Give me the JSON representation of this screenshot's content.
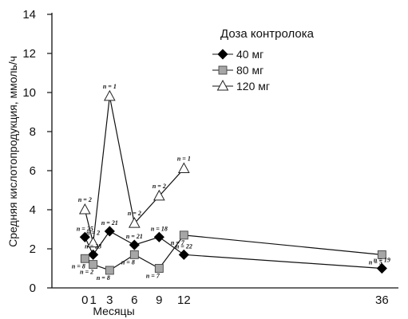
{
  "chart_data": {
    "type": "line",
    "xlabel": "Месяцы",
    "ylabel": "Средняя кислотопродукция, ммоль/ч",
    "ylim": [
      0,
      14
    ],
    "xlim": [
      -4,
      38
    ],
    "x_ticks": [
      0,
      1,
      3,
      6,
      9,
      12,
      36
    ],
    "y_ticks": [
      0,
      2,
      4,
      6,
      8,
      10,
      12,
      14
    ],
    "grid": false,
    "legend": {
      "title": "Доза контролока",
      "placement": "top-right"
    },
    "series": [
      {
        "name": "40 мг",
        "marker": "diamond",
        "fill": "#000000",
        "points": [
          {
            "x": 0,
            "y": 2.6,
            "n": "n = 25"
          },
          {
            "x": 1,
            "y": 1.7,
            "n": "n = 23"
          },
          {
            "x": 3,
            "y": 2.9,
            "n": "n = 21"
          },
          {
            "x": 6,
            "y": 2.2,
            "n": "n = 21"
          },
          {
            "x": 9,
            "y": 2.6,
            "n": "n = 18"
          },
          {
            "x": 12,
            "y": 1.7,
            "n": "n = 22"
          },
          {
            "x": 36,
            "y": 1.0,
            "n": "n = 19"
          }
        ]
      },
      {
        "name": "80 мг",
        "marker": "square",
        "fill": "#a6a6a6",
        "points": [
          {
            "x": 0,
            "y": 1.5,
            "n": "n = 8"
          },
          {
            "x": 1,
            "y": 1.2,
            "n": "n = 2"
          },
          {
            "x": 3,
            "y": 0.9,
            "n": "n = 8"
          },
          {
            "x": 6,
            "y": 1.7,
            "n": "n = 8"
          },
          {
            "x": 9,
            "y": 1.0,
            "n": "n = 7"
          },
          {
            "x": 12,
            "y": 2.7,
            "n": "n = 7"
          },
          {
            "x": 36,
            "y": 1.7,
            "n": "n = 5"
          }
        ]
      },
      {
        "name": "120 мг",
        "marker": "triangle",
        "fill": "#ffffff",
        "points": [
          {
            "x": 0,
            "y": 4.0,
            "n": "n = 2"
          },
          {
            "x": 1,
            "y": 2.3,
            "n": "n = 2"
          },
          {
            "x": 3,
            "y": 9.8,
            "n": "n = 1"
          },
          {
            "x": 6,
            "y": 3.3,
            "n": "n = 2"
          },
          {
            "x": 9,
            "y": 4.7,
            "n": "n = 2"
          },
          {
            "x": 12,
            "y": 6.1,
            "n": "n = 1"
          }
        ]
      }
    ]
  }
}
